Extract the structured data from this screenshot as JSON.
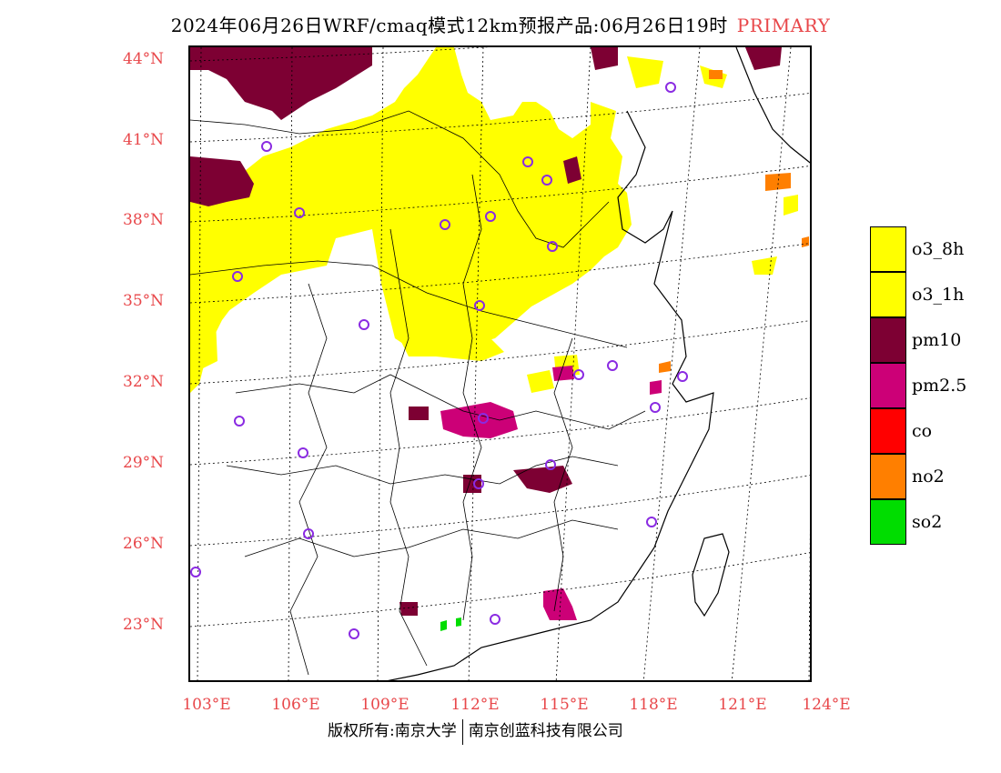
{
  "title": {
    "main": "2024年06月26日WRF/cmaq模式12km预报产品:06月26日19时",
    "tag": "PRIMARY"
  },
  "map": {
    "lat_labels": [
      "44°N",
      "41°N",
      "38°N",
      "35°N",
      "32°N",
      "29°N",
      "26°N",
      "23°N"
    ],
    "lon_labels": [
      "103°E",
      "106°E",
      "109°E",
      "112°E",
      "115°E",
      "118°E",
      "121°E",
      "124°E"
    ],
    "colors": {
      "o3_8h": "#ffff00",
      "o3_1h": "#ffff00",
      "pm10": "#7d0033",
      "pm25": "#cc0077",
      "co": "#ff0000",
      "no2": "#ff7f00",
      "so2": "#00dd00",
      "site_marker": "#8a2be2"
    }
  },
  "legend": [
    {
      "label": "o3_8h",
      "color": "#ffff00"
    },
    {
      "label": "o3_1h",
      "color": "#ffff00"
    },
    {
      "label": "pm10",
      "color": "#7d0033"
    },
    {
      "label": "pm2.5",
      "color": "#cc0077"
    },
    {
      "label": "co",
      "color": "#ff0000"
    },
    {
      "label": "no2",
      "color": "#ff7f00"
    },
    {
      "label": "so2",
      "color": "#00dd00"
    }
  ],
  "footer": {
    "left": "版权所有:南京大学",
    "right": "南京创蓝科技有限公司"
  }
}
